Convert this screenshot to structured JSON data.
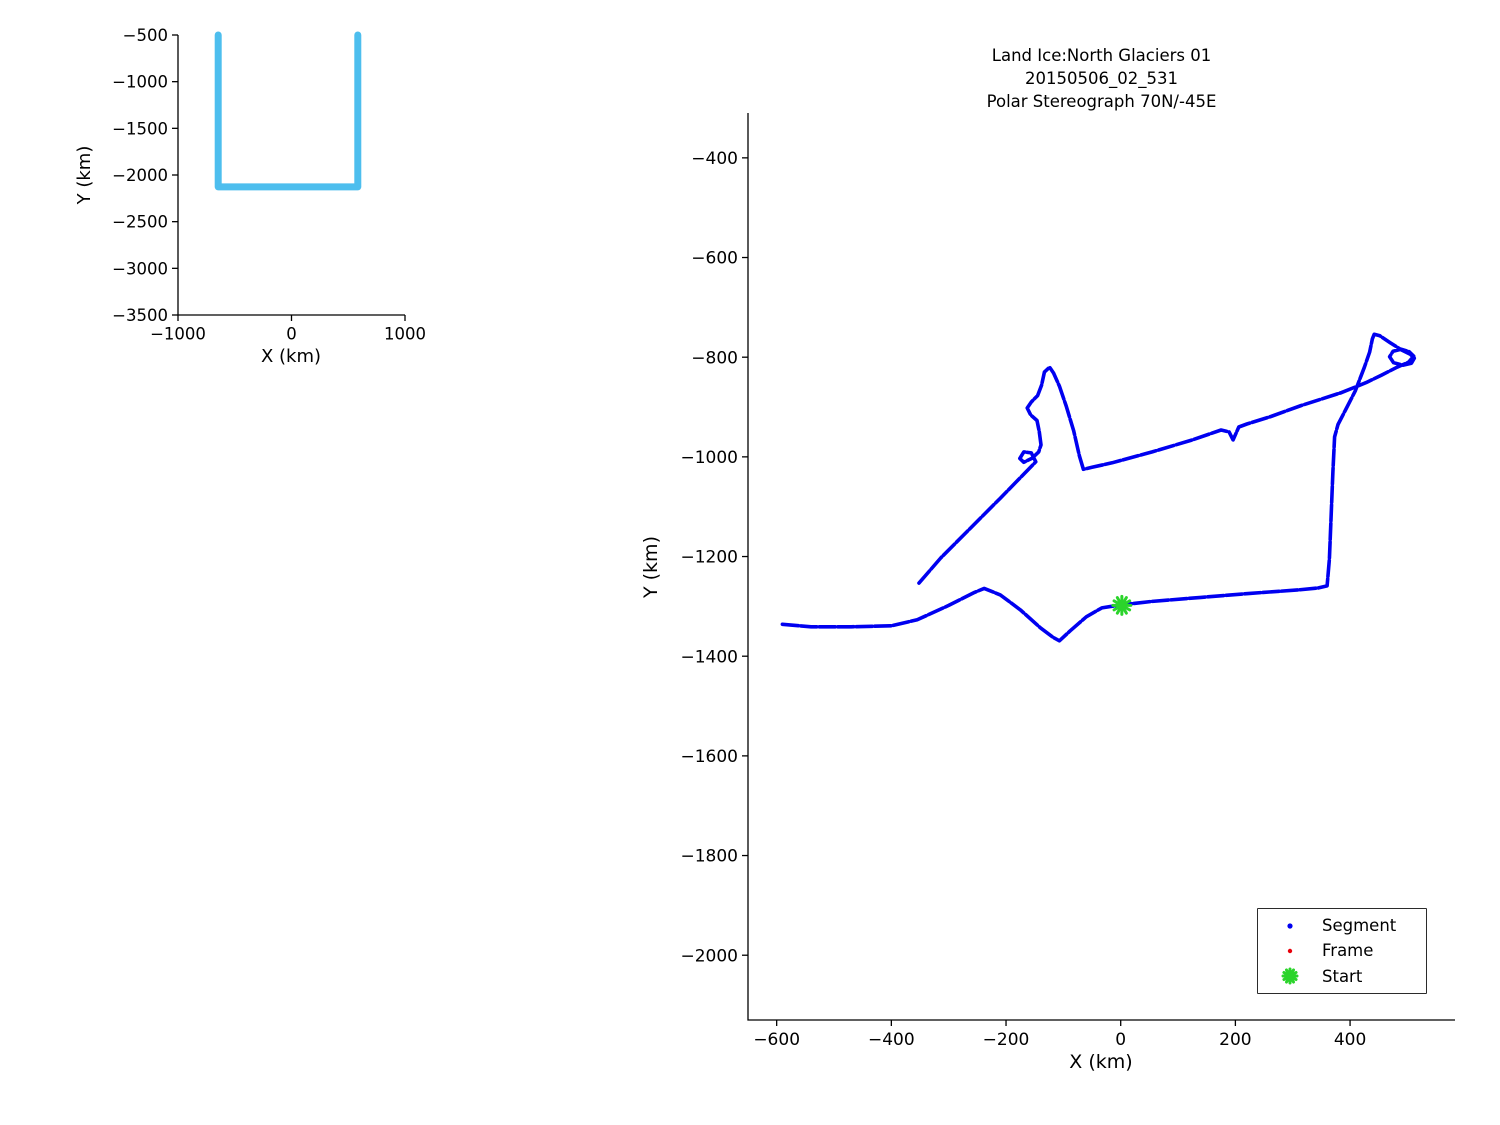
{
  "figure_title": {
    "line1": "Land Ice:North Glaciers 01",
    "line2": "20150506_02_531",
    "line3": "Polar Stereograph 70N/-45E"
  },
  "legend": {
    "position": "lower right",
    "items": [
      {
        "label": "Segment",
        "color": "#0000F0",
        "marker": "dot",
        "size": 2.6
      },
      {
        "label": "Frame",
        "color": "#E8000B",
        "marker": "dot",
        "size": 2.2
      },
      {
        "label": "Start",
        "color": "#2BD42B",
        "marker": "star",
        "size": 7
      }
    ]
  },
  "chart_data": [
    {
      "id": "overview",
      "type": "line",
      "title": "",
      "xlabel": "X (km)",
      "ylabel": "Y (km)",
      "xlim": [
        -1000,
        1000
      ],
      "ylim": [
        -3500,
        -500
      ],
      "xticks": [
        -1000,
        0,
        1000
      ],
      "yticks": [
        -500,
        -1000,
        -1500,
        -2000,
        -2500,
        -3000,
        -3500
      ],
      "grid": false,
      "axis_color": "#000000",
      "text_color": "#000000",
      "series": [
        {
          "name": "mission-region-outline",
          "color": "#4DBEEE",
          "width": 7,
          "points": [
            [
              -646,
              -500
            ],
            [
              -646,
              -2128
            ],
            [
              584,
              -2128
            ],
            [
              584,
              -500
            ]
          ]
        }
      ]
    },
    {
      "id": "flightline",
      "type": "line",
      "title": "Land Ice:North Glaciers 01\n20150506_02_531\nPolar Stereograph 70N/-45E",
      "xlabel": "X (km)",
      "ylabel": "Y (km)",
      "xlim": [
        -650,
        583
      ],
      "ylim": [
        -2130,
        -310
      ],
      "xticks": [
        -600,
        -400,
        -200,
        0,
        200,
        400
      ],
      "yticks": [
        -400,
        -600,
        -800,
        -1000,
        -1200,
        -1400,
        -1600,
        -1800,
        -2000
      ],
      "grid": false,
      "axis_color": "#000000",
      "text_color": "#000000",
      "legend_position": "lower right",
      "series": [
        {
          "name": "segment-track",
          "color": "#0000F0",
          "width": 3.6,
          "dash": "16 2.5",
          "points": [
            [
              -590,
              -1336
            ],
            [
              -540,
              -1341
            ],
            [
              -470,
              -1341
            ],
            [
              -400,
              -1339
            ],
            [
              -355,
              -1327
            ],
            [
              -300,
              -1298
            ],
            [
              -255,
              -1272
            ],
            [
              -238,
              -1264
            ],
            [
              -210,
              -1277
            ],
            [
              -175,
              -1307
            ],
            [
              -140,
              -1343
            ],
            [
              -118,
              -1362
            ],
            [
              -107,
              -1369
            ],
            [
              -88,
              -1349
            ],
            [
              -60,
              -1321
            ],
            [
              -33,
              -1303
            ],
            [
              0,
              -1297
            ],
            [
              55,
              -1290
            ],
            [
              140,
              -1282
            ],
            [
              225,
              -1274
            ],
            [
              310,
              -1267
            ],
            [
              345,
              -1263
            ],
            [
              360,
              -1259
            ],
            [
              364,
              -1205
            ],
            [
              367,
              -1120
            ],
            [
              370,
              -1030
            ],
            [
              373,
              -960
            ],
            [
              379,
              -935
            ],
            [
              392,
              -906
            ],
            [
              409,
              -868
            ],
            [
              425,
              -820
            ],
            [
              434,
              -790
            ],
            [
              439,
              -763
            ],
            [
              442,
              -754
            ],
            [
              452,
              -757
            ],
            [
              470,
              -771
            ],
            [
              489,
              -785
            ],
            [
              505,
              -794
            ],
            [
              512,
              -802
            ],
            [
              507,
              -812
            ],
            [
              492,
              -816
            ],
            [
              476,
              -811
            ],
            [
              469,
              -799
            ],
            [
              475,
              -788
            ],
            [
              489,
              -784
            ],
            [
              503,
              -789
            ],
            [
              511,
              -798
            ],
            [
              502,
              -810
            ],
            [
              482,
              -820
            ],
            [
              455,
              -836
            ],
            [
              428,
              -851
            ],
            [
              385,
              -871
            ],
            [
              315,
              -897
            ],
            [
              262,
              -919
            ],
            [
              220,
              -934
            ],
            [
              206,
              -940
            ],
            [
              196,
              -966
            ],
            [
              189,
              -950
            ],
            [
              175,
              -946
            ],
            [
              125,
              -966
            ],
            [
              55,
              -990
            ],
            [
              -15,
              -1012
            ],
            [
              -50,
              -1021
            ],
            [
              -65,
              -1025
            ],
            [
              -72,
              -998
            ],
            [
              -82,
              -948
            ],
            [
              -95,
              -898
            ],
            [
              -107,
              -858
            ],
            [
              -117,
              -832
            ],
            [
              -124,
              -820
            ],
            [
              -133,
              -830
            ],
            [
              -138,
              -856
            ],
            [
              -145,
              -877
            ],
            [
              -156,
              -890
            ],
            [
              -163,
              -902
            ],
            [
              -157,
              -916
            ],
            [
              -146,
              -927
            ],
            [
              -142,
              -950
            ],
            [
              -139,
              -976
            ],
            [
              -143,
              -990
            ],
            [
              -155,
              -1003
            ],
            [
              -169,
              -1011
            ],
            [
              -176,
              -1003
            ],
            [
              -169,
              -990
            ],
            [
              -156,
              -992
            ],
            [
              -148,
              -1010
            ],
            [
              -210,
              -1083
            ],
            [
              -262,
              -1143
            ],
            [
              -314,
              -1203
            ],
            [
              -353,
              -1255
            ]
          ]
        }
      ],
      "markers": [
        {
          "name": "start-marker",
          "shape": "star",
          "color": "#2BD42B",
          "size": 9,
          "x": 2,
          "y": -1298
        }
      ]
    }
  ]
}
